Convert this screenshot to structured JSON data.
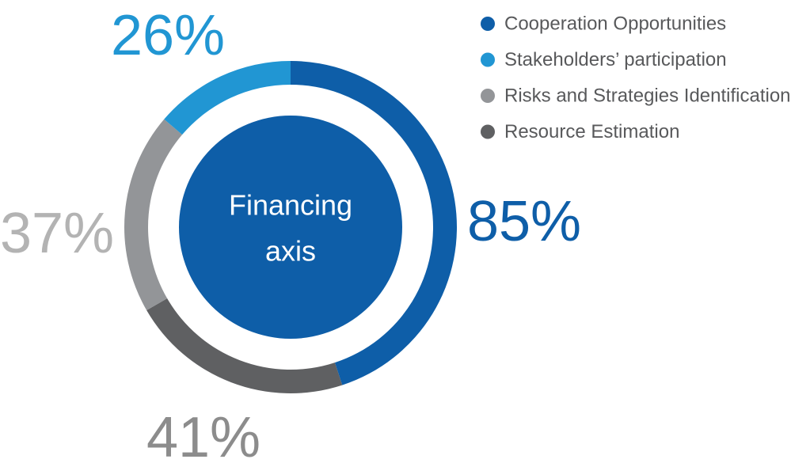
{
  "chart_data": {
    "type": "donut",
    "center_label": [
      "Financing",
      "axis"
    ],
    "center_color": "#0e5ea8",
    "categories": [
      "Cooperation Opportunities",
      "Stakeholders’ participation",
      "Risks and Strategies Identification",
      "Resource Estimation"
    ],
    "values": [
      85,
      26,
      37,
      41
    ],
    "value_labels": [
      "85%",
      "26%",
      "37%",
      "41%"
    ],
    "colors": [
      "#0e5ea8",
      "#2196d3",
      "#939598",
      "#5f6062"
    ],
    "label_colors": [
      "#0e5ea8",
      "#2196d3",
      "#b3b3b3",
      "#8c8c8c"
    ],
    "legend": "top-right"
  }
}
